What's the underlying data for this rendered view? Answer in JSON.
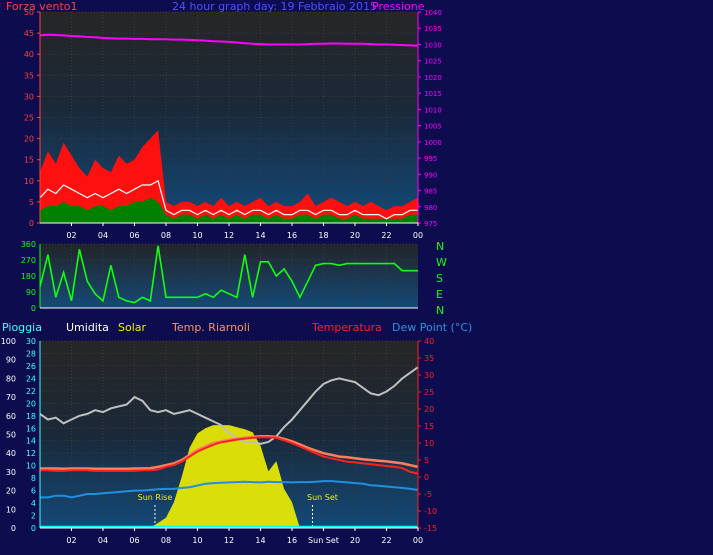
{
  "header": {
    "left_label": "Forza vento1",
    "title": "24 hour graph day: 19 Febbraio 2015",
    "right_label": "Pressione"
  },
  "legend": {
    "pioggia": "Pioggia",
    "umidita": "Umidita",
    "solar": "Solar",
    "temp_ricambi": "Temp. Riarnoli",
    "temperatura": "Temperatura",
    "dew_point": "Dew Point (°C)"
  },
  "colors": {
    "background": "#0c0c4f",
    "wind": "#ff1010",
    "gust_fill": "#ff1010",
    "avg_wind": "#008000",
    "pressure": "#ff00ff",
    "direction": "#10ff10",
    "humidity": "#c0c0c0",
    "solar": "#f0f000",
    "temperature": "#ff2020",
    "feels": "#ff8060",
    "dew_point": "#2090e0",
    "rain": "#00ffff"
  },
  "compass": [
    "N",
    "W",
    "S",
    "E",
    "N"
  ],
  "annotations": {
    "sun_rise": "Sun Rise",
    "sun_set": "Sun Set"
  },
  "chart_data": [
    {
      "type": "area",
      "name": "wind-pressure",
      "x_ticks": [
        "02",
        "04",
        "06",
        "08",
        "10",
        "12",
        "14",
        "16",
        "18",
        "20",
        "22",
        "00"
      ],
      "left_axis": {
        "ticks": [
          0,
          5,
          10,
          15,
          20,
          25,
          30,
          35,
          40,
          45,
          50
        ],
        "range": [
          0,
          50
        ],
        "label": "Forza vento1"
      },
      "right_axis": {
        "ticks": [
          975,
          980,
          985,
          990,
          995,
          1000,
          1005,
          1010,
          1015,
          1020,
          1025,
          1030,
          1035,
          1040
        ],
        "range": [
          975,
          1040
        ],
        "label": "Pressione"
      },
      "hours": [
        0,
        0.5,
        1,
        1.5,
        2,
        2.5,
        3,
        3.5,
        4,
        4.5,
        5,
        5.5,
        6,
        6.5,
        7,
        7.5,
        8,
        8.5,
        9,
        9.5,
        10,
        10.5,
        11,
        11.5,
        12,
        12.5,
        13,
        13.5,
        14,
        14.5,
        15,
        15.5,
        16,
        16.5,
        17,
        17.5,
        18,
        18.5,
        19,
        19.5,
        20,
        20.5,
        21,
        21.5,
        22,
        22.5,
        23,
        23.5,
        24
      ],
      "gust": [
        12,
        17,
        14,
        19,
        16,
        13,
        11,
        15,
        13,
        12,
        16,
        14,
        15,
        18,
        20,
        22,
        5,
        4,
        5,
        5,
        4,
        5,
        4,
        6,
        4,
        5,
        4,
        5,
        6,
        4,
        5,
        4,
        4,
        5,
        7,
        4,
        5,
        6,
        5,
        4,
        5,
        4,
        5,
        4,
        3,
        4,
        4,
        5,
        6
      ],
      "wind": [
        6,
        8,
        7,
        9,
        8,
        7,
        6,
        7,
        6,
        7,
        8,
        7,
        8,
        9,
        9,
        10,
        3,
        2,
        3,
        3,
        2,
        3,
        2,
        3,
        2,
        3,
        2,
        3,
        3,
        2,
        3,
        2,
        2,
        3,
        3,
        2,
        3,
        3,
        2,
        2,
        3,
        2,
        2,
        2,
        1,
        2,
        2,
        3,
        3
      ],
      "avg_wind": [
        3,
        4,
        4,
        5,
        4,
        4,
        3,
        4,
        4,
        3,
        4,
        4,
        5,
        5,
        6,
        5,
        2,
        1,
        2,
        2,
        1,
        2,
        1,
        2,
        1,
        2,
        1,
        2,
        2,
        1,
        2,
        1,
        1,
        2,
        2,
        1,
        2,
        2,
        1,
        1,
        2,
        1,
        1,
        1,
        1,
        1,
        1,
        2,
        2
      ],
      "pressure": [
        1032.8,
        1033.0,
        1032.9,
        1032.8,
        1032.6,
        1032.5,
        1032.3,
        1032.2,
        1032.0,
        1031.9,
        1031.8,
        1031.8,
        1031.7,
        1031.7,
        1031.6,
        1031.6,
        1031.6,
        1031.5,
        1031.5,
        1031.4,
        1031.3,
        1031.2,
        1031.0,
        1030.9,
        1030.8,
        1030.6,
        1030.4,
        1030.2,
        1030.1,
        1030.0,
        1030.0,
        1030.0,
        1030.0,
        1030.0,
        1030.1,
        1030.2,
        1030.2,
        1030.3,
        1030.3,
        1030.2,
        1030.2,
        1030.2,
        1030.1,
        1030.0,
        1030.0,
        1029.9,
        1029.8,
        1029.7,
        1029.6
      ]
    },
    {
      "type": "line",
      "name": "wind-direction",
      "x_ticks": [
        "02",
        "04",
        "06",
        "08",
        "10",
        "12",
        "14",
        "16",
        "18",
        "20",
        "22",
        "00"
      ],
      "y_ticks": [
        0,
        90,
        180,
        270,
        360
      ],
      "range": [
        0,
        360
      ],
      "hours": [
        0,
        0.5,
        1,
        1.5,
        2,
        2.5,
        3,
        3.5,
        4,
        4.5,
        5,
        5.5,
        6,
        6.5,
        7,
        7.5,
        8,
        8.5,
        9,
        9.5,
        10,
        10.5,
        11,
        11.5,
        12,
        12.5,
        13,
        13.5,
        14,
        14.5,
        15,
        15.5,
        16,
        16.5,
        17,
        17.5,
        18,
        18.5,
        19,
        19.5,
        20,
        20.5,
        21,
        21.5,
        22,
        22.5,
        23,
        23.5,
        24
      ],
      "values": [
        120,
        300,
        60,
        200,
        40,
        330,
        150,
        80,
        40,
        240,
        60,
        40,
        30,
        60,
        40,
        350,
        60,
        60,
        60,
        60,
        60,
        80,
        60,
        100,
        80,
        60,
        300,
        60,
        260,
        260,
        180,
        220,
        150,
        60,
        150,
        240,
        250,
        250,
        240,
        250,
        250,
        250,
        250,
        250,
        250,
        250,
        210,
        210,
        210
      ]
    },
    {
      "type": "line",
      "name": "temperature-humidity",
      "x_ticks": [
        "02",
        "04",
        "06",
        "08",
        "10",
        "12",
        "14",
        "16",
        "Sun Set",
        "20",
        "22",
        "00"
      ],
      "left_axis_rain": {
        "ticks": [
          0,
          2,
          4,
          6,
          8,
          10,
          12,
          14,
          16,
          18,
          20,
          22,
          24,
          26,
          28,
          30
        ],
        "range": [
          0,
          30
        ],
        "label": "Pioggia"
      },
      "left_axis_humidity": {
        "ticks": [
          0,
          10,
          20,
          30,
          40,
          50,
          60,
          70,
          80,
          90,
          100
        ],
        "range": [
          0,
          100
        ],
        "label": "Umidita"
      },
      "right_axis_temp": {
        "ticks": [
          -15,
          -10,
          -5,
          0,
          5,
          10,
          15,
          20,
          25,
          30,
          35,
          40
        ],
        "range": [
          -15,
          40
        ],
        "label": "Temperatura"
      },
      "hours": [
        0,
        0.5,
        1,
        1.5,
        2,
        2.5,
        3,
        3.5,
        4,
        4.5,
        5,
        5.5,
        6,
        6.5,
        7,
        7.5,
        8,
        8.5,
        9,
        9.5,
        10,
        10.5,
        11,
        11.5,
        12,
        12.5,
        13,
        13.5,
        14,
        14.5,
        15,
        15.5,
        16,
        16.5,
        17,
        17.5,
        18,
        18.5,
        19,
        19.5,
        20,
        20.5,
        21,
        21.5,
        22,
        22.5,
        23,
        23.5,
        24
      ],
      "humidity": [
        61,
        58,
        59,
        56,
        58,
        60,
        61,
        63,
        62,
        64,
        65,
        66,
        70,
        68,
        63,
        62,
        63,
        61,
        62,
        63,
        61,
        59,
        57,
        55,
        51,
        48,
        46,
        46,
        45,
        46,
        49,
        54,
        58,
        63,
        68,
        73,
        77,
        79,
        80,
        79,
        78,
        75,
        72,
        71,
        73,
        76,
        80,
        83,
        86
      ],
      "temperature": [
        2,
        2,
        1.8,
        1.8,
        2,
        2,
        2,
        1.8,
        1.8,
        1.8,
        1.8,
        1.8,
        1.8,
        2,
        2,
        2.2,
        3,
        3.5,
        4.5,
        6,
        7.5,
        8.5,
        9.5,
        10.2,
        10.6,
        11,
        11.3,
        11.5,
        11.7,
        11.7,
        11.5,
        10.8,
        10,
        9,
        8,
        7,
        6,
        5.5,
        5,
        4.5,
        4.3,
        4,
        3.8,
        3.5,
        3.2,
        3,
        2.6,
        1.5,
        1
      ],
      "feels": [
        2.5,
        2.5,
        2.5,
        2.4,
        2.5,
        2.5,
        2.5,
        2.4,
        2.4,
        2.4,
        2.4,
        2.4,
        2.5,
        2.5,
        2.6,
        3,
        3.5,
        4,
        5,
        6.5,
        8,
        9,
        10,
        10.5,
        11,
        11.3,
        11.6,
        11.8,
        12,
        12,
        11.8,
        11.2,
        10.5,
        9.6,
        8.6,
        7.8,
        7,
        6.5,
        6,
        5.8,
        5.5,
        5.2,
        5,
        4.8,
        4.6,
        4.3,
        4,
        3.5,
        3
      ],
      "dew_point": [
        -6,
        -6,
        -5.5,
        -5.5,
        -6,
        -5.5,
        -5,
        -5,
        -4.8,
        -4.6,
        -4.4,
        -4.2,
        -4,
        -4,
        -3.8,
        -3.6,
        -3.5,
        -3.5,
        -3.2,
        -3,
        -2.5,
        -2,
        -1.8,
        -1.7,
        -1.6,
        -1.5,
        -1.4,
        -1.5,
        -1.6,
        -1.4,
        -1.5,
        -1.5,
        -1.6,
        -1.5,
        -1.5,
        -1.4,
        -1.2,
        -1.2,
        -1.4,
        -1.6,
        -1.8,
        -2,
        -2.4,
        -2.6,
        -2.8,
        -3,
        -3.2,
        -3.5,
        -3.8
      ],
      "solar": [
        0,
        0,
        0,
        0,
        0,
        0,
        0,
        0,
        0,
        0,
        0,
        0,
        0,
        0,
        0,
        0.05,
        0.1,
        0.25,
        0.5,
        0.78,
        0.92,
        0.97,
        1,
        1,
        1,
        0.98,
        0.96,
        0.93,
        0.8,
        0.55,
        0.65,
        0.38,
        0.25,
        0,
        0,
        0,
        0,
        0,
        0,
        0,
        0,
        0,
        0,
        0,
        0,
        0,
        0,
        0,
        0
      ],
      "solar_scale_max_percent": 55,
      "rain": [
        0,
        0,
        0,
        0,
        0,
        0,
        0,
        0,
        0,
        0,
        0,
        0,
        0,
        0,
        0,
        0,
        0,
        0,
        0,
        0,
        0,
        0,
        0,
        0,
        0,
        0,
        0,
        0,
        0,
        0,
        0,
        0,
        0,
        0,
        0,
        0,
        0,
        0,
        0,
        0,
        0,
        0,
        0,
        0,
        0,
        0,
        0,
        0,
        0
      ],
      "sun_rise_hour": 7.3,
      "sun_set_hour": 17.3
    }
  ]
}
